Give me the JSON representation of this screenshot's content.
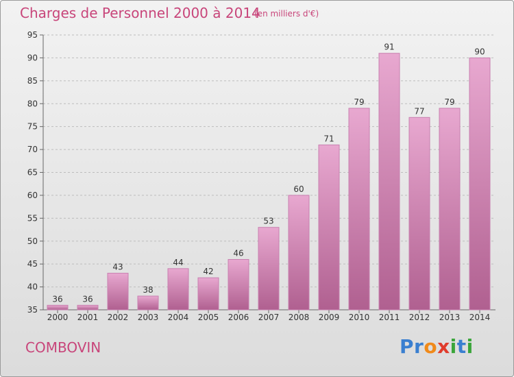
{
  "title": "Charges de Personnel 2000 à 2014",
  "subtitle": "(en milliers d'€)",
  "commune": "COMBOVIN",
  "logo": {
    "text": "Proxiti",
    "letters": [
      {
        "char": "P",
        "color": "#3a7fd0"
      },
      {
        "char": "r",
        "color": "#3a7fd0"
      },
      {
        "char": "o",
        "color": "#f08a1a"
      },
      {
        "char": "x",
        "color": "#e03c2c"
      },
      {
        "char": "i",
        "color": "#3aa53a"
      },
      {
        "char": "t",
        "color": "#3a7fd0"
      },
      {
        "char": "i",
        "color": "#3aa53a"
      }
    ]
  },
  "colors": {
    "title": "#c8457a",
    "bar_top": "#e8a8d0",
    "bar_bottom": "#b06090",
    "grid": "#bdbdbd",
    "axis_text": "#333333"
  },
  "chart_data": {
    "type": "bar",
    "title": "Charges de Personnel 2000 à 2014",
    "subtitle": "(en milliers d'€)",
    "categories": [
      "2000",
      "2001",
      "2002",
      "2003",
      "2004",
      "2005",
      "2006",
      "2007",
      "2008",
      "2009",
      "2010",
      "2011",
      "2012",
      "2013",
      "2014"
    ],
    "values": [
      36,
      36,
      43,
      38,
      44,
      42,
      46,
      53,
      60,
      71,
      79,
      91,
      77,
      79,
      90
    ],
    "ylim": [
      35,
      95
    ],
    "yticks": [
      35,
      40,
      45,
      50,
      55,
      60,
      65,
      70,
      75,
      80,
      85,
      90,
      95
    ],
    "grid": "horizontal-dashed",
    "xlabel": "",
    "ylabel": ""
  }
}
